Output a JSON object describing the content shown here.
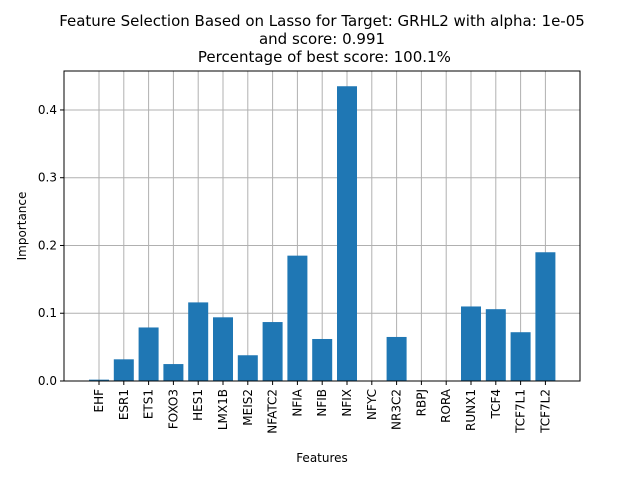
{
  "chart_data": {
    "type": "bar",
    "title_lines": [
      "Feature Selection Based on Lasso for Target: GRHL2 with alpha: 1e-05",
      "and score: 0.991",
      " Percentage of best score: 100.1%"
    ],
    "xlabel": "Features",
    "ylabel": "Importance",
    "categories": [
      "EHF",
      "ESR1",
      "ETS1",
      "FOXO3",
      "HES1",
      "LMX1B",
      "MEIS2",
      "NFATC2",
      "NFIA",
      "NFIB",
      "NFIX",
      "NFYC",
      "NR3C2",
      "RBPJ",
      "RORA",
      "RUNX1",
      "TCF4",
      "TCF7L1",
      "TCF7L2"
    ],
    "values": [
      0.002,
      0.032,
      0.079,
      0.025,
      0.116,
      0.094,
      0.038,
      0.087,
      0.185,
      0.062,
      0.435,
      0.0,
      0.065,
      0.0,
      0.0,
      0.11,
      0.106,
      0.072,
      0.19
    ],
    "ylim": [
      0,
      0.4575
    ],
    "yticks": [
      0.0,
      0.1,
      0.2,
      0.3,
      0.4
    ],
    "ytick_labels": [
      "0.0",
      "0.1",
      "0.2",
      "0.3",
      "0.4"
    ],
    "grid": true,
    "bar_color": "#1f77b4",
    "grid_color": "#b0b0b0"
  }
}
